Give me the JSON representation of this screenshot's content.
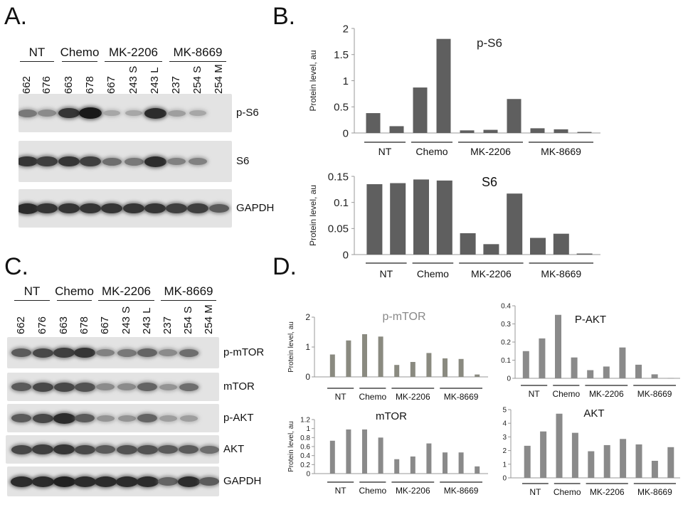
{
  "panels": {
    "A": "A.",
    "B": "B.",
    "C": "C.",
    "D": "D."
  },
  "groups": [
    "NT",
    "Chemo",
    "MK-2206",
    "MK-8669"
  ],
  "lanes": [
    "662",
    "676",
    "663",
    "678",
    "667",
    "243 S",
    "243 L",
    "237",
    "254 S",
    "254 M"
  ],
  "blots_a": [
    {
      "label": "p-S6",
      "intensity": [
        0.45,
        0.35,
        0.8,
        0.95,
        0.2,
        0.2,
        0.85,
        0.25,
        0.2,
        0.0
      ]
    },
    {
      "label": "S6",
      "intensity": [
        0.8,
        0.75,
        0.8,
        0.75,
        0.5,
        0.45,
        0.85,
        0.4,
        0.4,
        0.0
      ]
    },
    {
      "label": "GAPDH",
      "intensity": [
        0.85,
        0.8,
        0.8,
        0.8,
        0.8,
        0.8,
        0.8,
        0.75,
        0.75,
        0.6
      ]
    }
  ],
  "blots_c": [
    {
      "label": "p-mTOR",
      "intensity": [
        0.6,
        0.7,
        0.75,
        0.8,
        0.4,
        0.45,
        0.55,
        0.35,
        0.5,
        0.0
      ]
    },
    {
      "label": "mTOR",
      "intensity": [
        0.6,
        0.7,
        0.7,
        0.65,
        0.35,
        0.35,
        0.55,
        0.3,
        0.5,
        0.0
      ]
    },
    {
      "label": "p-AKT",
      "intensity": [
        0.6,
        0.7,
        0.85,
        0.6,
        0.3,
        0.3,
        0.55,
        0.25,
        0.25,
        0.0
      ]
    },
    {
      "label": "AKT",
      "intensity": [
        0.7,
        0.75,
        0.8,
        0.7,
        0.6,
        0.65,
        0.65,
        0.6,
        0.6,
        0.5
      ]
    },
    {
      "label": "GAPDH",
      "intensity": [
        0.85,
        0.85,
        0.9,
        0.85,
        0.85,
        0.85,
        0.85,
        0.55,
        0.85,
        0.6
      ]
    }
  ],
  "chart_data": [
    {
      "id": "b1",
      "type": "bar",
      "title": "p-S6",
      "ylabel": "Protein level, au",
      "ylim": [
        0,
        2
      ],
      "yticks": [
        "0",
        "0.5",
        "1",
        "1.5",
        "2"
      ],
      "ytick_values": [
        0,
        0.5,
        1,
        1.5,
        2
      ],
      "values": [
        0.38,
        0.13,
        0.87,
        1.8,
        0.05,
        0.06,
        0.65,
        0.09,
        0.07,
        0.02
      ],
      "groups": [
        "NT",
        "Chemo",
        "MK-2206",
        "MK-8669"
      ],
      "group_sizes": [
        2,
        2,
        3,
        3
      ],
      "bar_color": "#5f5f5f"
    },
    {
      "id": "b2",
      "type": "bar",
      "title": "S6",
      "ylabel": "Protein level, au",
      "ylim": [
        0,
        0.15
      ],
      "yticks": [
        "0",
        "0.05",
        "0.1",
        "0.15"
      ],
      "ytick_values": [
        0,
        0.05,
        0.1,
        0.15
      ],
      "values": [
        0.135,
        0.137,
        0.144,
        0.142,
        0.041,
        0.02,
        0.117,
        0.032,
        0.04,
        0.002
      ],
      "groups": [
        "NT",
        "Chemo",
        "MK-2206",
        "MK-8669"
      ],
      "group_sizes": [
        2,
        2,
        3,
        3
      ],
      "bar_color": "#5f5f5f"
    },
    {
      "id": "d1",
      "type": "bar",
      "title": "p-mTOR",
      "ylabel": "Protein level, au",
      "ylim": [
        0,
        2
      ],
      "yticks": [
        "0",
        "1",
        "2"
      ],
      "ytick_values": [
        0,
        1,
        2
      ],
      "values": [
        0.75,
        1.22,
        1.43,
        1.35,
        0.4,
        0.5,
        0.8,
        0.62,
        0.6,
        0.08
      ],
      "groups": [
        "NT",
        "Chemo",
        "MK-2206",
        "MK-8669"
      ],
      "group_sizes": [
        2,
        2,
        3,
        3
      ],
      "bar_color": "#8a8a80"
    },
    {
      "id": "d2",
      "type": "bar",
      "title": "P-AKT",
      "ylabel": "",
      "ylim": [
        0,
        0.4
      ],
      "yticks": [
        "0",
        "0.1",
        "0.2",
        "0.3",
        "0.4"
      ],
      "ytick_values": [
        0,
        0.1,
        0.2,
        0.3,
        0.4
      ],
      "values": [
        0.15,
        0.22,
        0.35,
        0.115,
        0.045,
        0.065,
        0.17,
        0.075,
        0.022,
        0.002
      ],
      "groups": [
        "NT",
        "Chemo",
        "MK-2206",
        "MK-8669"
      ],
      "group_sizes": [
        2,
        2,
        3,
        3
      ],
      "bar_color": "#8a8a8a"
    },
    {
      "id": "d3",
      "type": "bar",
      "title": "mTOR",
      "ylabel": "Protein level, au",
      "ylim": [
        0,
        1.2
      ],
      "yticks": [
        "0",
        "0.2",
        "0.4",
        "0.6",
        "0.8",
        "1",
        "1.2"
      ],
      "ytick_values": [
        0,
        0.2,
        0.4,
        0.6,
        0.8,
        1,
        1.2
      ],
      "values": [
        0.73,
        0.98,
        0.98,
        0.8,
        0.32,
        0.38,
        0.67,
        0.47,
        0.47,
        0.16
      ],
      "groups": [
        "NT",
        "Chemo",
        "MK-2206",
        "MK-8669"
      ],
      "group_sizes": [
        2,
        2,
        3,
        3
      ],
      "bar_color": "#8a8a8a"
    },
    {
      "id": "d4",
      "type": "bar",
      "title": "AKT",
      "ylabel": "",
      "ylim": [
        0,
        5
      ],
      "yticks": [
        "0",
        "1",
        "2",
        "3",
        "4",
        "5"
      ],
      "ytick_values": [
        0,
        1,
        2,
        3,
        4,
        5
      ],
      "values": [
        2.35,
        3.4,
        4.7,
        3.3,
        1.95,
        2.4,
        2.85,
        2.45,
        1.25,
        2.25
      ],
      "groups": [
        "NT",
        "Chemo",
        "MK-2206",
        "MK-8669"
      ],
      "group_sizes": [
        2,
        2,
        3,
        3
      ],
      "bar_color": "#8a8a8a"
    }
  ]
}
